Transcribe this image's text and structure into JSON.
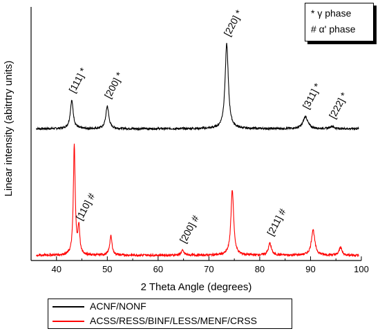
{
  "chart_data": {
    "type": "line",
    "xlabel": "2 Theta Angle (degrees)",
    "ylabel": "Linear intensity (abitrtry units)",
    "xlim": [
      35,
      100
    ],
    "x_ticks": [
      40,
      50,
      60,
      70,
      80,
      90,
      100
    ],
    "grid": false,
    "legend": {
      "placement": "bottom"
    },
    "key": {
      "gamma": "*  γ phase",
      "alpha": "# α' phase"
    },
    "series": [
      {
        "name": "ACNF/NONF",
        "color": "#000000",
        "baseline": 0.1,
        "peaks": [
          {
            "x": 43.0,
            "h": 0.35,
            "w": 0.35,
            "label": "[111] *"
          },
          {
            "x": 50.0,
            "h": 0.28,
            "w": 0.35,
            "label": "[200] *"
          },
          {
            "x": 73.5,
            "h": 1.05,
            "w": 0.38,
            "label": "[220] *"
          },
          {
            "x": 89.0,
            "h": 0.15,
            "w": 0.55,
            "label": "[311] *"
          },
          {
            "x": 94.2,
            "h": 0.03,
            "w": 0.45,
            "label": "[222] *"
          }
        ]
      },
      {
        "name": "ACSS/RESS/BINF/LESS/MENF/CRSS",
        "color": "#ff0000",
        "baseline": 0.02,
        "peaks": [
          {
            "x": 43.5,
            "h": 1.2,
            "w": 0.22,
            "label": ""
          },
          {
            "x": 44.4,
            "h": 0.3,
            "w": 0.22,
            "label": "[110] #"
          },
          {
            "x": 50.7,
            "h": 0.21,
            "w": 0.28,
            "label": ""
          },
          {
            "x": 64.8,
            "h": 0.05,
            "w": 0.35,
            "label": "[200] #"
          },
          {
            "x": 74.6,
            "h": 0.72,
            "w": 0.32,
            "label": ""
          },
          {
            "x": 82.0,
            "h": 0.13,
            "w": 0.35,
            "label": "[211] #"
          },
          {
            "x": 90.5,
            "h": 0.28,
            "w": 0.4,
            "label": ""
          },
          {
            "x": 95.9,
            "h": 0.09,
            "w": 0.3,
            "label": ""
          }
        ]
      }
    ]
  }
}
